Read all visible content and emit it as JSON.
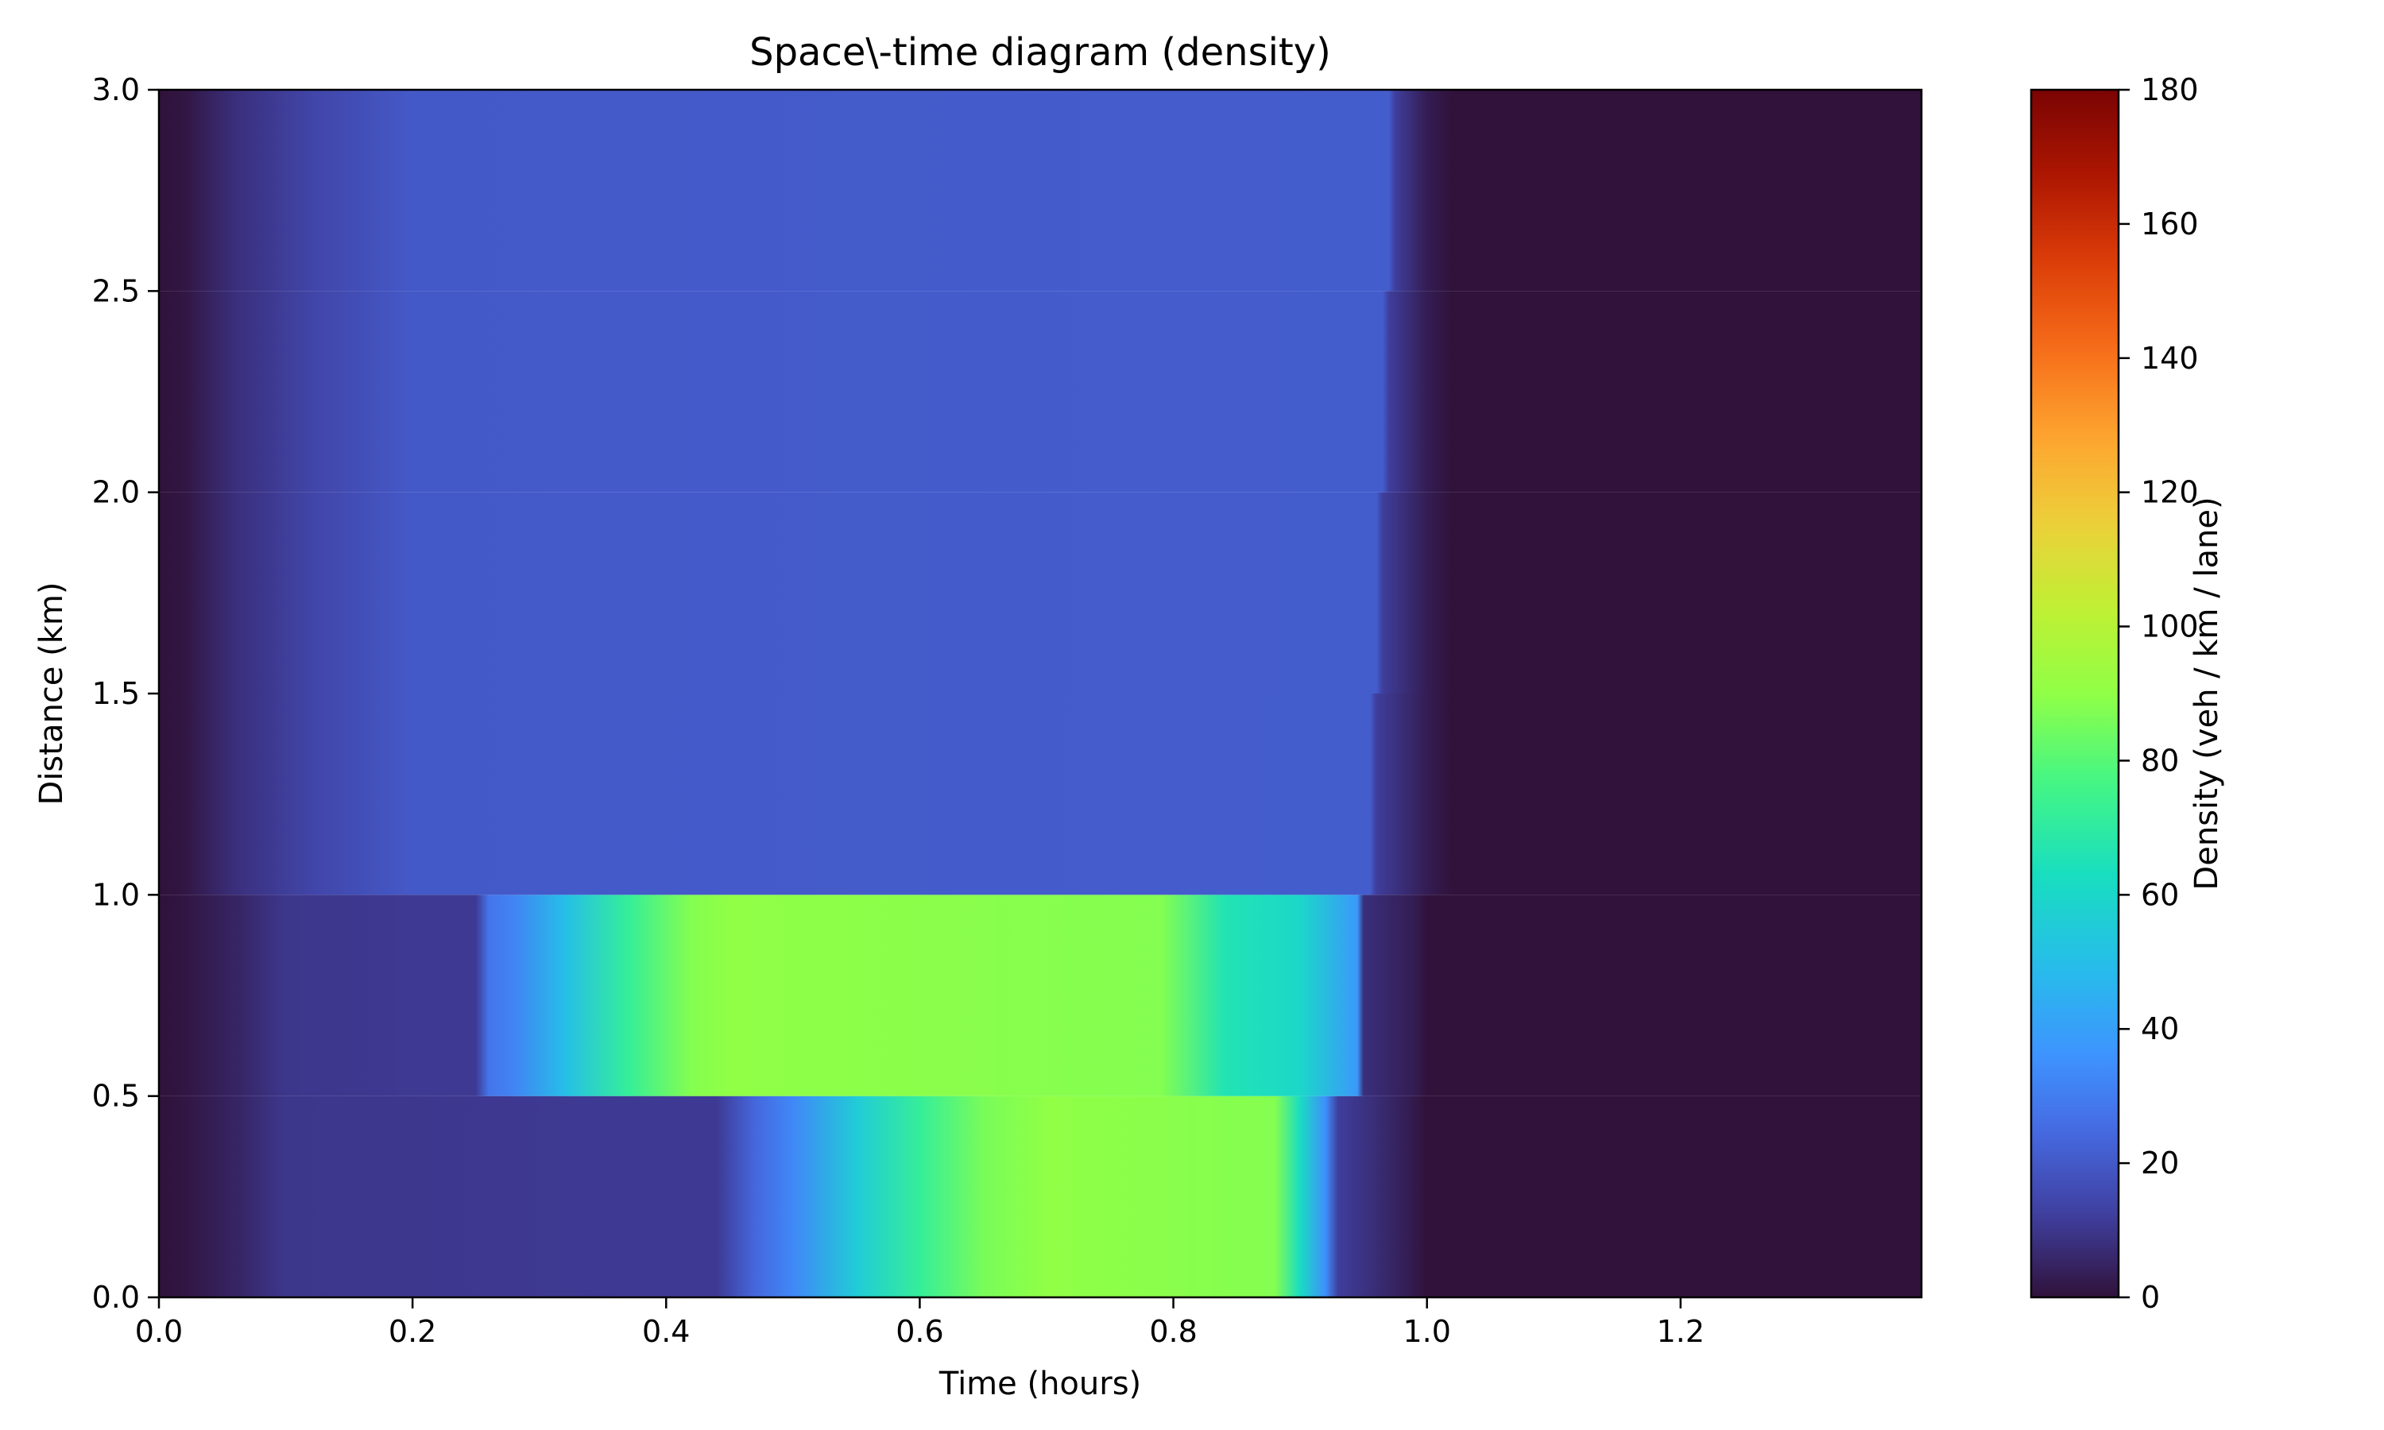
{
  "chart_data": {
    "type": "heatmap",
    "title": "Space\\-time diagram (density)",
    "xlabel": "Time (hours)",
    "ylabel": "Distance (km)",
    "xlim": [
      0.0,
      1.39
    ],
    "ylim": [
      0.0,
      3.0
    ],
    "xticks": [
      "0.0",
      "0.2",
      "0.4",
      "0.6",
      "0.8",
      "1.0",
      "1.2"
    ],
    "yticks": [
      "0.0",
      "0.5",
      "1.0",
      "1.5",
      "2.0",
      "2.5",
      "3.0"
    ],
    "colorbar": {
      "label": "Density (veh / km / lane)",
      "range": [
        0,
        180
      ],
      "ticks": [
        "0",
        "20",
        "40",
        "60",
        "80",
        "100",
        "120",
        "140",
        "160",
        "180"
      ],
      "colormap": "turbo"
    },
    "segments": [
      {
        "y_range": [
          0.0,
          0.5
        ],
        "profile": [
          [
            0.0,
            0
          ],
          [
            0.02,
            1
          ],
          [
            0.06,
            5
          ],
          [
            0.1,
            10
          ],
          [
            0.44,
            11
          ],
          [
            0.47,
            24
          ],
          [
            0.5,
            33
          ],
          [
            0.55,
            55
          ],
          [
            0.6,
            72
          ],
          [
            0.65,
            86
          ],
          [
            0.7,
            90
          ],
          [
            0.88,
            88
          ],
          [
            0.9,
            62
          ],
          [
            0.92,
            35
          ],
          [
            0.93,
            12
          ],
          [
            0.98,
            4
          ],
          [
            1.0,
            0
          ],
          [
            1.39,
            0
          ]
        ]
      },
      {
        "y_range": [
          0.5,
          1.0
        ],
        "profile": [
          [
            0.0,
            0
          ],
          [
            0.02,
            1
          ],
          [
            0.06,
            5
          ],
          [
            0.1,
            10
          ],
          [
            0.25,
            11
          ],
          [
            0.26,
            28
          ],
          [
            0.28,
            32
          ],
          [
            0.32,
            50
          ],
          [
            0.37,
            72
          ],
          [
            0.42,
            88
          ],
          [
            0.45,
            90
          ],
          [
            0.79,
            88
          ],
          [
            0.84,
            66
          ],
          [
            0.9,
            60
          ],
          [
            0.945,
            38
          ],
          [
            0.95,
            8
          ],
          [
            0.99,
            3
          ],
          [
            1.0,
            0
          ],
          [
            1.39,
            0
          ]
        ]
      },
      {
        "y_range": [
          1.0,
          1.5
        ],
        "profile": [
          [
            0.0,
            0
          ],
          [
            0.02,
            1
          ],
          [
            0.06,
            8
          ],
          [
            0.12,
            14
          ],
          [
            0.2,
            20
          ],
          [
            0.955,
            21
          ],
          [
            0.96,
            12
          ],
          [
            1.0,
            3
          ],
          [
            1.02,
            0
          ],
          [
            1.39,
            0
          ]
        ]
      },
      {
        "y_range": [
          1.5,
          2.0
        ],
        "profile": [
          [
            0.0,
            0
          ],
          [
            0.02,
            1
          ],
          [
            0.06,
            8
          ],
          [
            0.12,
            14
          ],
          [
            0.2,
            20
          ],
          [
            0.96,
            21
          ],
          [
            0.965,
            12
          ],
          [
            1.0,
            3
          ],
          [
            1.02,
            0
          ],
          [
            1.39,
            0
          ]
        ]
      },
      {
        "y_range": [
          2.0,
          2.5
        ],
        "profile": [
          [
            0.0,
            0
          ],
          [
            0.02,
            1
          ],
          [
            0.06,
            8
          ],
          [
            0.12,
            14
          ],
          [
            0.2,
            20
          ],
          [
            0.965,
            21
          ],
          [
            0.97,
            12
          ],
          [
            1.0,
            3
          ],
          [
            1.02,
            0
          ],
          [
            1.39,
            0
          ]
        ]
      },
      {
        "y_range": [
          2.5,
          3.0
        ],
        "profile": [
          [
            0.0,
            0
          ],
          [
            0.02,
            1
          ],
          [
            0.06,
            8
          ],
          [
            0.12,
            14
          ],
          [
            0.2,
            20
          ],
          [
            0.97,
            21
          ],
          [
            0.975,
            12
          ],
          [
            1.0,
            3
          ],
          [
            1.02,
            0
          ],
          [
            1.39,
            0
          ]
        ]
      }
    ]
  }
}
